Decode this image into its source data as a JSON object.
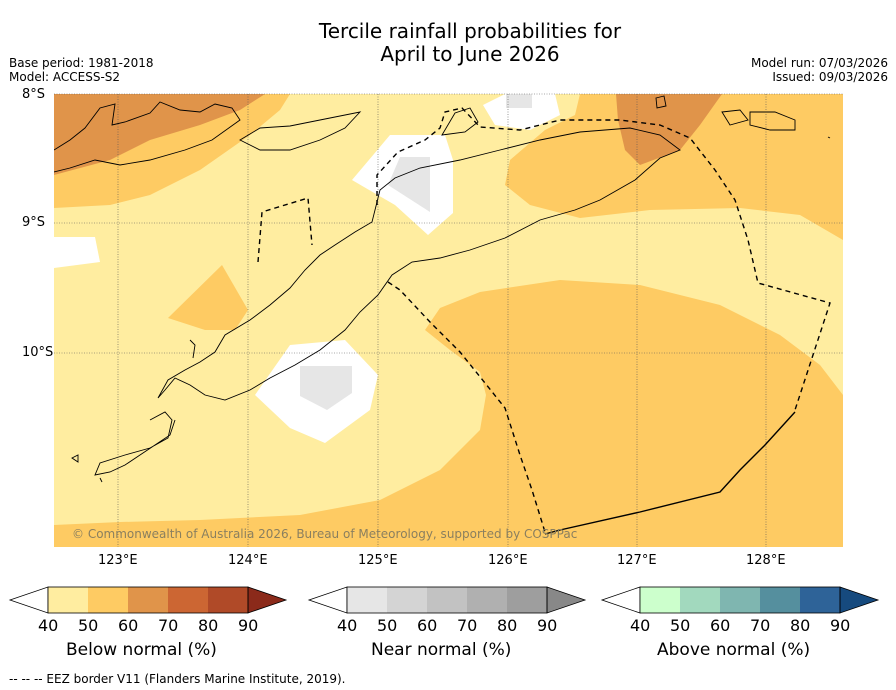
{
  "title": {
    "line1": "Tercile rainfall probabilities for",
    "line2": "April to June 2026"
  },
  "meta": {
    "base_period": "Base period: 1981-2018",
    "model": "Model: ACCESS-S2",
    "model_run": "Model run: 07/03/2026",
    "issued": "Issued: 09/03/2026"
  },
  "map": {
    "lat_labels": [
      "8°S",
      "9°S",
      "10°S"
    ],
    "lon_labels": [
      "123°E",
      "124°E",
      "125°E",
      "126°E",
      "127°E",
      "128°E"
    ],
    "copyright": "© Commonwealth of Australia 2026, Bureau of Meteorology, supported by COSPPac"
  },
  "colorbars": {
    "below": {
      "label": "Below normal (%)",
      "ticks": [
        "40",
        "50",
        "60",
        "70",
        "80",
        "90"
      ],
      "colors": [
        "#ffeda0",
        "#fecb63",
        "#e0944a",
        "#cc6633",
        "#b04a28",
        "#8b2a1a"
      ]
    },
    "near": {
      "label": "Near normal (%)",
      "ticks": [
        "40",
        "50",
        "60",
        "70",
        "80",
        "90"
      ],
      "colors": [
        "#e6e6e6",
        "#d4d4d4",
        "#c2c2c2",
        "#b0b0b0",
        "#9e9e9e",
        "#888888"
      ]
    },
    "above": {
      "label": "Above normal (%)",
      "ticks": [
        "40",
        "50",
        "60",
        "70",
        "80",
        "90"
      ],
      "colors": [
        "#ccffcc",
        "#a2d9be",
        "#7fb6b0",
        "#558f9e",
        "#2e6398",
        "#164a7e"
      ]
    }
  },
  "footer": "--  --  -- EEZ border V11 (Flanders Marine Institute, 2019)."
}
